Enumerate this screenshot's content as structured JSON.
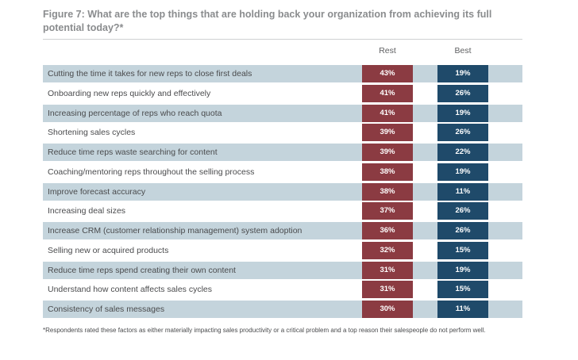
{
  "figure": {
    "title": "Figure 7: What are the top things that are holding back your organization from achieving its full potential today?*",
    "footnote": "*Respondents rated these factors as either materially impacting sales productivity or a critical problem and a top reason their salespeople do not perform well."
  },
  "colors": {
    "rest": "#8b3b42",
    "best": "#1f4a6a",
    "row_shade": "#c4d4dc",
    "title": "#8a8c8e"
  },
  "chart_data": {
    "type": "table",
    "title": "Figure 7: What are the top things that are holding back your organization from achieving its full potential today?*",
    "columns": [
      "Rest",
      "Best"
    ],
    "categories": [
      "Cutting the time it takes for new reps to close first deals",
      "Onboarding new reps quickly and effectively",
      "Increasing percentage of reps who reach quota",
      "Shortening sales cycles",
      "Reduce time reps waste searching for content",
      "Coaching/mentoring reps throughout the selling process",
      "Improve forecast accuracy",
      "Increasing deal sizes",
      "Increase CRM (customer relationship management) system adoption",
      "Selling new or acquired products",
      "Reduce time reps spend creating their own content",
      "Understand how content affects sales cycles",
      "Consistency of sales messages"
    ],
    "series": [
      {
        "name": "Rest",
        "values": [
          "43%",
          "41%",
          "41%",
          "39%",
          "39%",
          "38%",
          "38%",
          "37%",
          "36%",
          "32%",
          "31%",
          "31%",
          "30%"
        ]
      },
      {
        "name": "Best",
        "values": [
          "19%",
          "26%",
          "19%",
          "26%",
          "22%",
          "19%",
          "11%",
          "26%",
          "26%",
          "15%",
          "19%",
          "15%",
          "11%"
        ]
      }
    ]
  }
}
